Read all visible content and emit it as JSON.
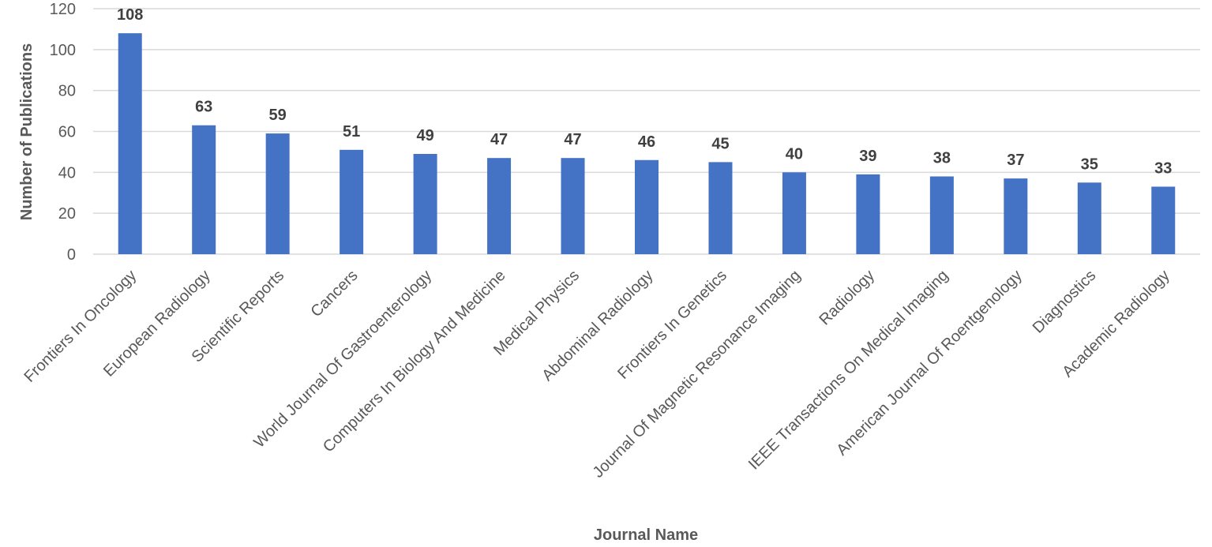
{
  "chart_data": {
    "type": "bar",
    "title": "",
    "xlabel": "Journal Name",
    "ylabel": "Number of Publications",
    "ylim": [
      0,
      120
    ],
    "yticks": [
      0,
      20,
      40,
      60,
      80,
      100,
      120
    ],
    "grid": true,
    "bar_color": "#4472C4",
    "categories": [
      "Frontiers In Oncology",
      "European Radiology",
      "Scientific Reports",
      "Cancers",
      "World Journal Of Gastroenterology",
      "Computers In Biology And Medicine",
      "Medical Physics",
      "Abdominal Radiology",
      "Frontiers In Genetics",
      "Journal Of Magnetic Resonance Imaging",
      "Radiology",
      "IEEE Transactions On Medical Imaging",
      "American Journal Of Roentgenology",
      "Diagnostics",
      "Academic Radiology"
    ],
    "values": [
      108,
      63,
      59,
      51,
      49,
      47,
      47,
      46,
      45,
      40,
      39,
      38,
      37,
      35,
      33
    ]
  }
}
